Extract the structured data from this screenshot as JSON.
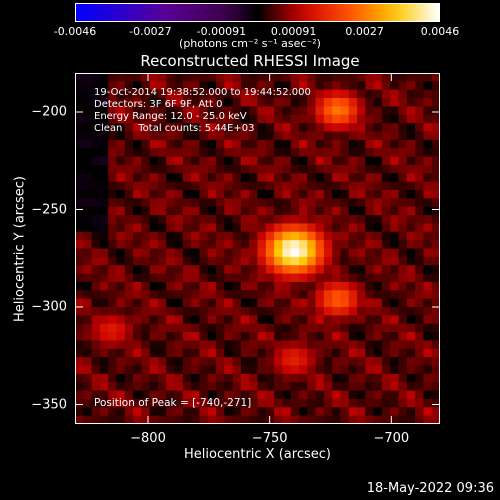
{
  "colorbar": {
    "ticks": [
      "-0.0046",
      "-0.0027",
      "-0.00091",
      "0.00091",
      "0.0027",
      "0.0046"
    ],
    "unit_label": "(photons cm⁻² s⁻¹ asec⁻²)",
    "range": [
      -0.0046,
      0.0046
    ]
  },
  "title": "Reconstructed RHESSI Image",
  "info": {
    "time": "19-Oct-2014 19:38:52.000 to 19:44:52.000",
    "detectors": "Detectors: 3F 6F 9F, Att 0",
    "energy": "Energy Range: 12.0 - 25.0 keV",
    "clean": "Clean     Total counts: 5.44E+03",
    "peak": "Position of Peak = [-740,-271]"
  },
  "axes": {
    "xlabel": "Heliocentric X (arcsec)",
    "ylabel": "Heliocentric Y (arcsec)",
    "xticks": [
      "-800",
      "-750",
      "-700"
    ],
    "yticks": [
      "-200",
      "-250",
      "-300",
      "-350"
    ]
  },
  "timestamp": "18-May-2022 09:36",
  "chart_data": {
    "type": "heatmap",
    "title": "Reconstructed RHESSI Image",
    "xlabel": "Heliocentric X (arcsec)",
    "ylabel": "Heliocentric Y (arcsec)",
    "xlim": [
      -830,
      -680
    ],
    "ylim": [
      -360,
      -180
    ],
    "xticks": [
      -800,
      -750,
      -700
    ],
    "yticks": [
      -200,
      -250,
      -300,
      -350
    ],
    "colorscale": "red-temperature",
    "zlim": [
      -0.0046,
      0.0046
    ],
    "peak": {
      "x": -740,
      "y": -271,
      "value": 0.0046
    },
    "secondary_sources": [
      {
        "x": -722,
        "y": -199,
        "value": 0.0027
      },
      {
        "x": -722,
        "y": -296,
        "value": 0.0024
      },
      {
        "x": -740,
        "y": -327,
        "value": 0.0016
      },
      {
        "x": -815,
        "y": -312,
        "value": 0.0015
      }
    ],
    "background_level": 0.0009
  }
}
